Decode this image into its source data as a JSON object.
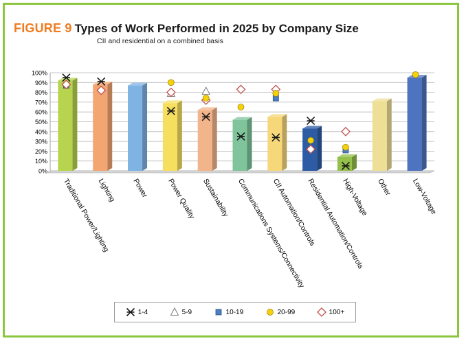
{
  "header": {
    "figure_label": "FIGURE 9",
    "title": "Types of Work Performed in 2025 by Company Size"
  },
  "chart_data": {
    "type": "bar",
    "title": "Types of Work Performed in 2025 by Company Size",
    "subtitle": "CII and residential on a combined basis",
    "categories": [
      "Traditional Power/Lighting",
      "Lighting",
      "Power",
      "Power Quality",
      "Sustainability",
      "Communications Systems/Connectivity",
      "CII Automation/Controls",
      "Residential Automation/Controls",
      "High-Voltage",
      "Other",
      "Low-Voltage"
    ],
    "bar_values": [
      92,
      88,
      87,
      69,
      62,
      52,
      55,
      43,
      14,
      71,
      95
    ],
    "bar_colors": [
      "#b8d44e",
      "#f3a572",
      "#7fb3e3",
      "#f6df5e",
      "#f2b48a",
      "#7fc49a",
      "#f6d77a",
      "#2d5ca4",
      "#93bf4a",
      "#eedf96",
      "#4e74c0"
    ],
    "y_ticks": [
      "0%",
      "10%",
      "20%",
      "30%",
      "40%",
      "50%",
      "60%",
      "70%",
      "80%",
      "90%",
      "100%"
    ],
    "ylim": [
      0,
      100
    ],
    "grid": true,
    "legend_position": "bottom",
    "series": [
      {
        "name": "1-4",
        "marker": "asterisk",
        "color": "#1a1a1a",
        "values": [
          95,
          91,
          null,
          61,
          55,
          35,
          34,
          51,
          5,
          null,
          null
        ]
      },
      {
        "name": "5-9",
        "marker": "triangle",
        "color": "#7a7a7a",
        "values": [
          null,
          null,
          null,
          79,
          81,
          null,
          null,
          null,
          null,
          null,
          null
        ]
      },
      {
        "name": "10-19",
        "marker": "square",
        "color": "#4a7fc1",
        "values": [
          87,
          null,
          null,
          null,
          null,
          null,
          74,
          null,
          21,
          null,
          null
        ]
      },
      {
        "name": "20-99",
        "marker": "circle",
        "color": "#f5d10b",
        "values": [
          null,
          null,
          null,
          90,
          74,
          65,
          79,
          31,
          24,
          null,
          98
        ]
      },
      {
        "name": "100+",
        "marker": "diamond",
        "color": "#c0504d",
        "values": [
          88,
          82,
          null,
          80,
          72,
          83,
          83,
          22,
          40,
          null,
          null
        ]
      }
    ]
  }
}
